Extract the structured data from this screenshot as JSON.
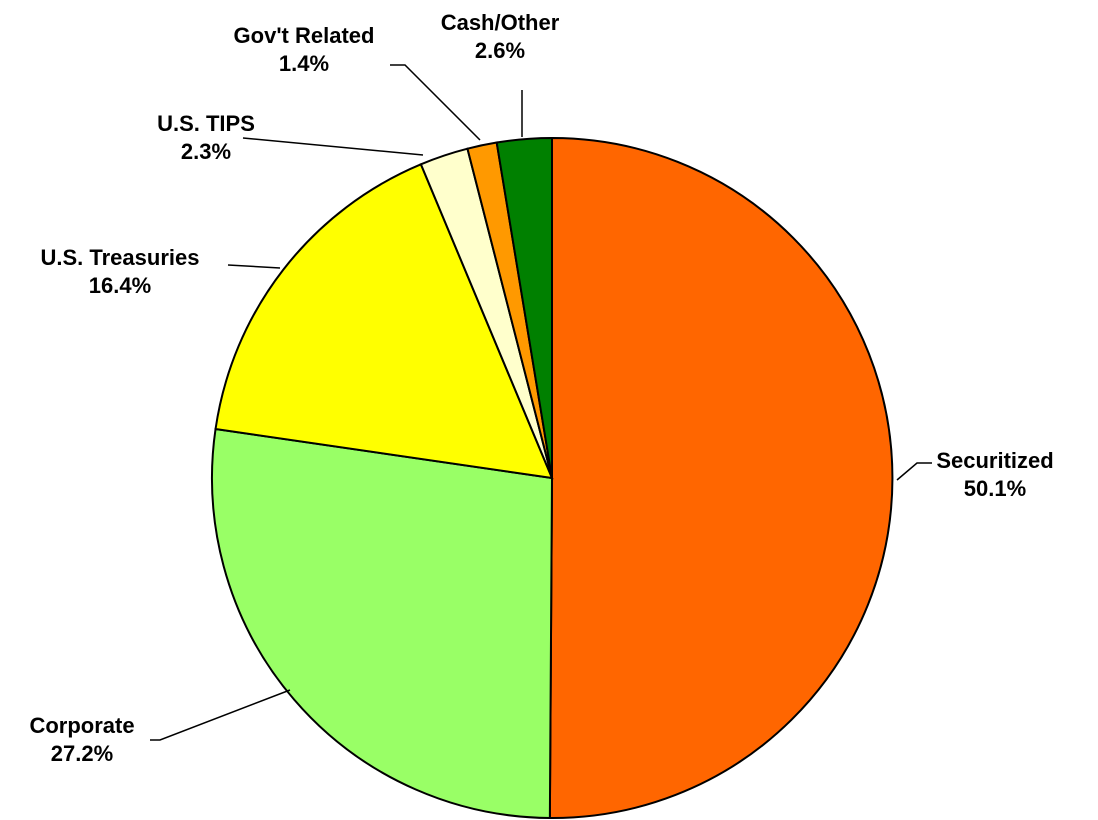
{
  "chart_data": {
    "type": "pie",
    "title": "",
    "start": "12 o'clock, clockwise",
    "slices": [
      {
        "label": "Securitized",
        "value": 50.1,
        "value_label": "50.1%",
        "color": "#FF6600"
      },
      {
        "label": "Corporate",
        "value": 27.2,
        "value_label": "27.2%",
        "color": "#99FF66"
      },
      {
        "label": "U.S. Treasuries",
        "value": 16.4,
        "value_label": "16.4%",
        "color": "#FFFF00"
      },
      {
        "label": "U.S. TIPS",
        "value": 2.3,
        "value_label": "2.3%",
        "color": "#FFFFCC"
      },
      {
        "label": "Gov't Related",
        "value": 1.4,
        "value_label": "1.4%",
        "color": "#FF9900"
      },
      {
        "label": "Cash/Other",
        "value": 2.6,
        "value_label": "2.6%",
        "color": "#008000"
      }
    ]
  }
}
